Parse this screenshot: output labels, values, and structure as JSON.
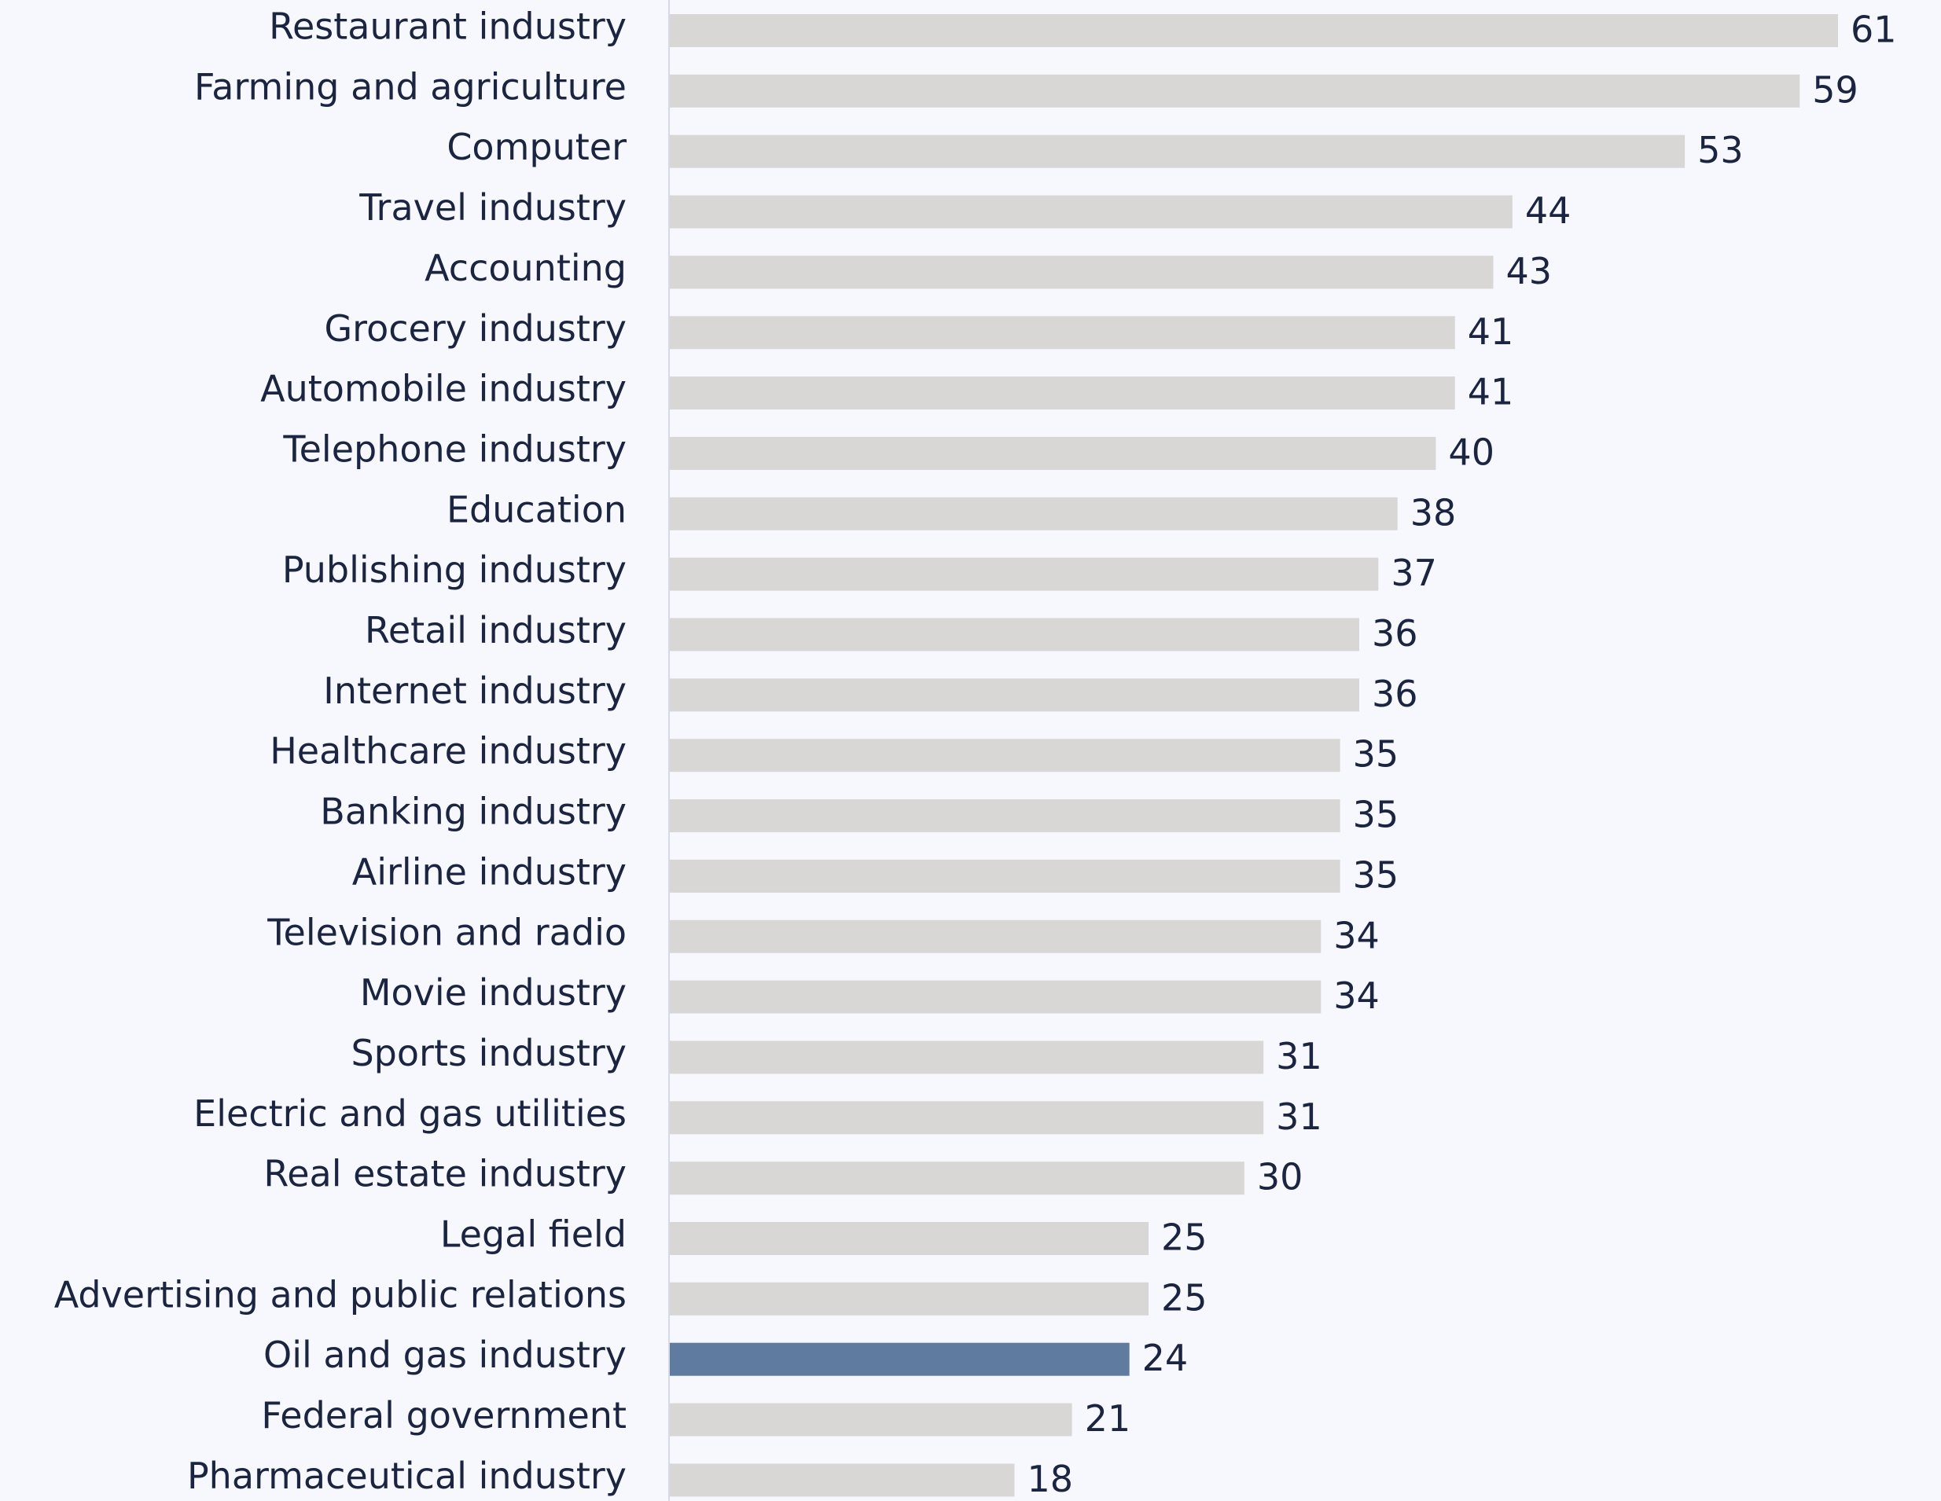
{
  "chart_data": {
    "type": "barh",
    "categories": [
      "Restaurant industry",
      "Farming and agriculture",
      "Computer",
      "Travel industry",
      "Accounting",
      "Grocery industry",
      "Automobile industry",
      "Telephone industry",
      "Education",
      "Publishing industry",
      "Retail industry",
      "Internet industry",
      "Healthcare industry",
      "Banking industry",
      "Airline industry",
      "Television and radio",
      "Movie industry",
      "Sports industry",
      "Electric and gas utilities",
      "Real estate industry",
      "Legal field",
      "Advertising and public relations",
      "Oil and gas industry",
      "Federal government",
      "Pharmaceutical industry"
    ],
    "values": [
      61,
      59,
      53,
      44,
      43,
      41,
      41,
      40,
      38,
      37,
      36,
      36,
      35,
      35,
      35,
      34,
      34,
      31,
      31,
      30,
      25,
      25,
      24,
      21,
      18
    ],
    "colors": [
      "#d9d7d6",
      "#d9d7d6",
      "#d9d7d6",
      "#d9d7d6",
      "#d9d7d6",
      "#d9d7d6",
      "#d9d7d6",
      "#d9d7d6",
      "#d9d7d6",
      "#d9d7d6",
      "#d9d7d6",
      "#d9d7d6",
      "#d9d7d6",
      "#d9d7d6",
      "#d9d7d6",
      "#d9d7d6",
      "#d9d7d6",
      "#d9d7d6",
      "#d9d7d6",
      "#d9d7d6",
      "#d9d7d6",
      "#d9d7d6",
      "#607ba0",
      "#d9d7d6",
      "#d9d7d6"
    ]
  }
}
